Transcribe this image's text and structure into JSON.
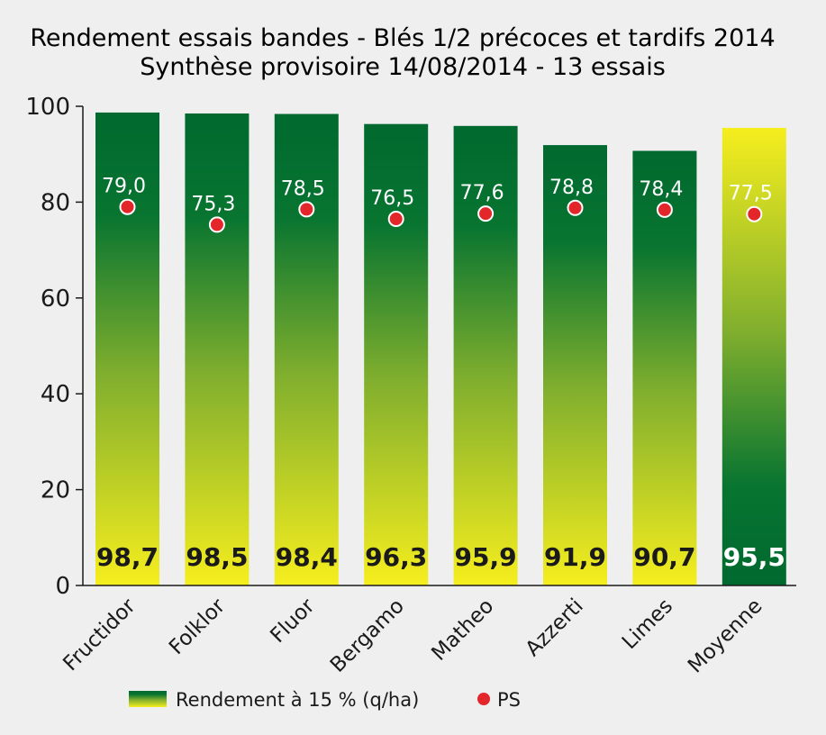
{
  "chart_data": {
    "type": "bar",
    "title": "Rendement essais bandes - Blés 1/2 précoces et tardifs 2014",
    "subtitle": "Synthèse provisoire 14/08/2014 - 13 essais",
    "categories": [
      "Fructidor",
      "Folklor",
      "Fluor",
      "Bergamo",
      "Matheo",
      "Azzerti",
      "Limes",
      "Moyenne"
    ],
    "series": [
      {
        "name": "Rendement à 15 % (q/ha)",
        "values": [
          98.7,
          98.5,
          98.4,
          96.3,
          95.9,
          91.9,
          90.7,
          95.5
        ],
        "labels": [
          "98,7",
          "98,5",
          "98,4",
          "96,3",
          "95,9",
          "91,9",
          "90,7",
          "95,5"
        ]
      },
      {
        "name": "PS",
        "type": "scatter",
        "values": [
          79.0,
          75.3,
          78.5,
          76.5,
          77.6,
          78.8,
          78.4,
          77.5
        ],
        "labels": [
          "79,0",
          "75,3",
          "78,5",
          "76,5",
          "77,6",
          "78,8",
          "78,4",
          "77,5"
        ]
      }
    ],
    "ylim": [
      0,
      100
    ],
    "yticks": [
      0,
      20,
      40,
      60,
      80,
      100
    ],
    "grid": false,
    "legend_position": "bottom",
    "colors": {
      "bar_dark": "#00692f",
      "bar_light": "#f4ec1e",
      "ps_marker": "#e3262a",
      "axis": "#1a1a1a"
    },
    "highlight_index": 7
  }
}
